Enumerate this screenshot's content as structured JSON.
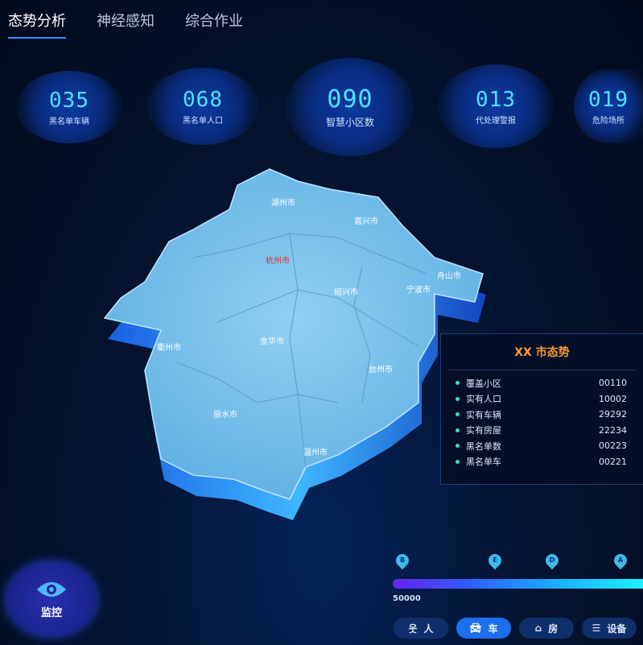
{
  "tabs": [
    {
      "label": "态势分析",
      "active": true
    },
    {
      "label": "神经感知"
    },
    {
      "label": "综合作业"
    }
  ],
  "stats": [
    {
      "value": "035",
      "label": "黑名单车辆"
    },
    {
      "value": "068",
      "label": "黑名单人口"
    },
    {
      "value": "090",
      "label": "智慧小区数"
    },
    {
      "value": "013",
      "label": "代处理警报"
    },
    {
      "value": "019",
      "label": "危险场所"
    }
  ],
  "map": {
    "cities": [
      {
        "name": "湖州市"
      },
      {
        "name": "嘉兴市"
      },
      {
        "name": "杭州市",
        "highlight": "#e0302a"
      },
      {
        "name": "舟山市"
      },
      {
        "name": "绍兴市"
      },
      {
        "name": "宁波市"
      },
      {
        "name": "衢州市"
      },
      {
        "name": "金华市"
      },
      {
        "name": "台州市"
      },
      {
        "name": "丽水市"
      },
      {
        "name": "温州市"
      }
    ]
  },
  "panel": {
    "title": "XX 市态势",
    "rows": [
      {
        "label": "覆盖小区",
        "value": "00110"
      },
      {
        "label": "实有人口",
        "value": "10002"
      },
      {
        "label": "实有车辆",
        "value": "29292"
      },
      {
        "label": "实有房屋",
        "value": "22234"
      },
      {
        "label": "黑名单数",
        "value": "00223"
      },
      {
        "label": "黑名单车",
        "value": "00221"
      }
    ]
  },
  "monitor": {
    "label": "监控",
    "icon": "eye-icon"
  },
  "legend": {
    "markers": [
      "B",
      "E",
      "D",
      "A"
    ],
    "min_label": "50000"
  },
  "filters": [
    {
      "label": "人",
      "icon": "person-icon"
    },
    {
      "label": "车",
      "icon": "car-icon",
      "active": true
    },
    {
      "label": "房",
      "icon": "house-icon"
    },
    {
      "label": "设备",
      "icon": "device-icon"
    }
  ]
}
